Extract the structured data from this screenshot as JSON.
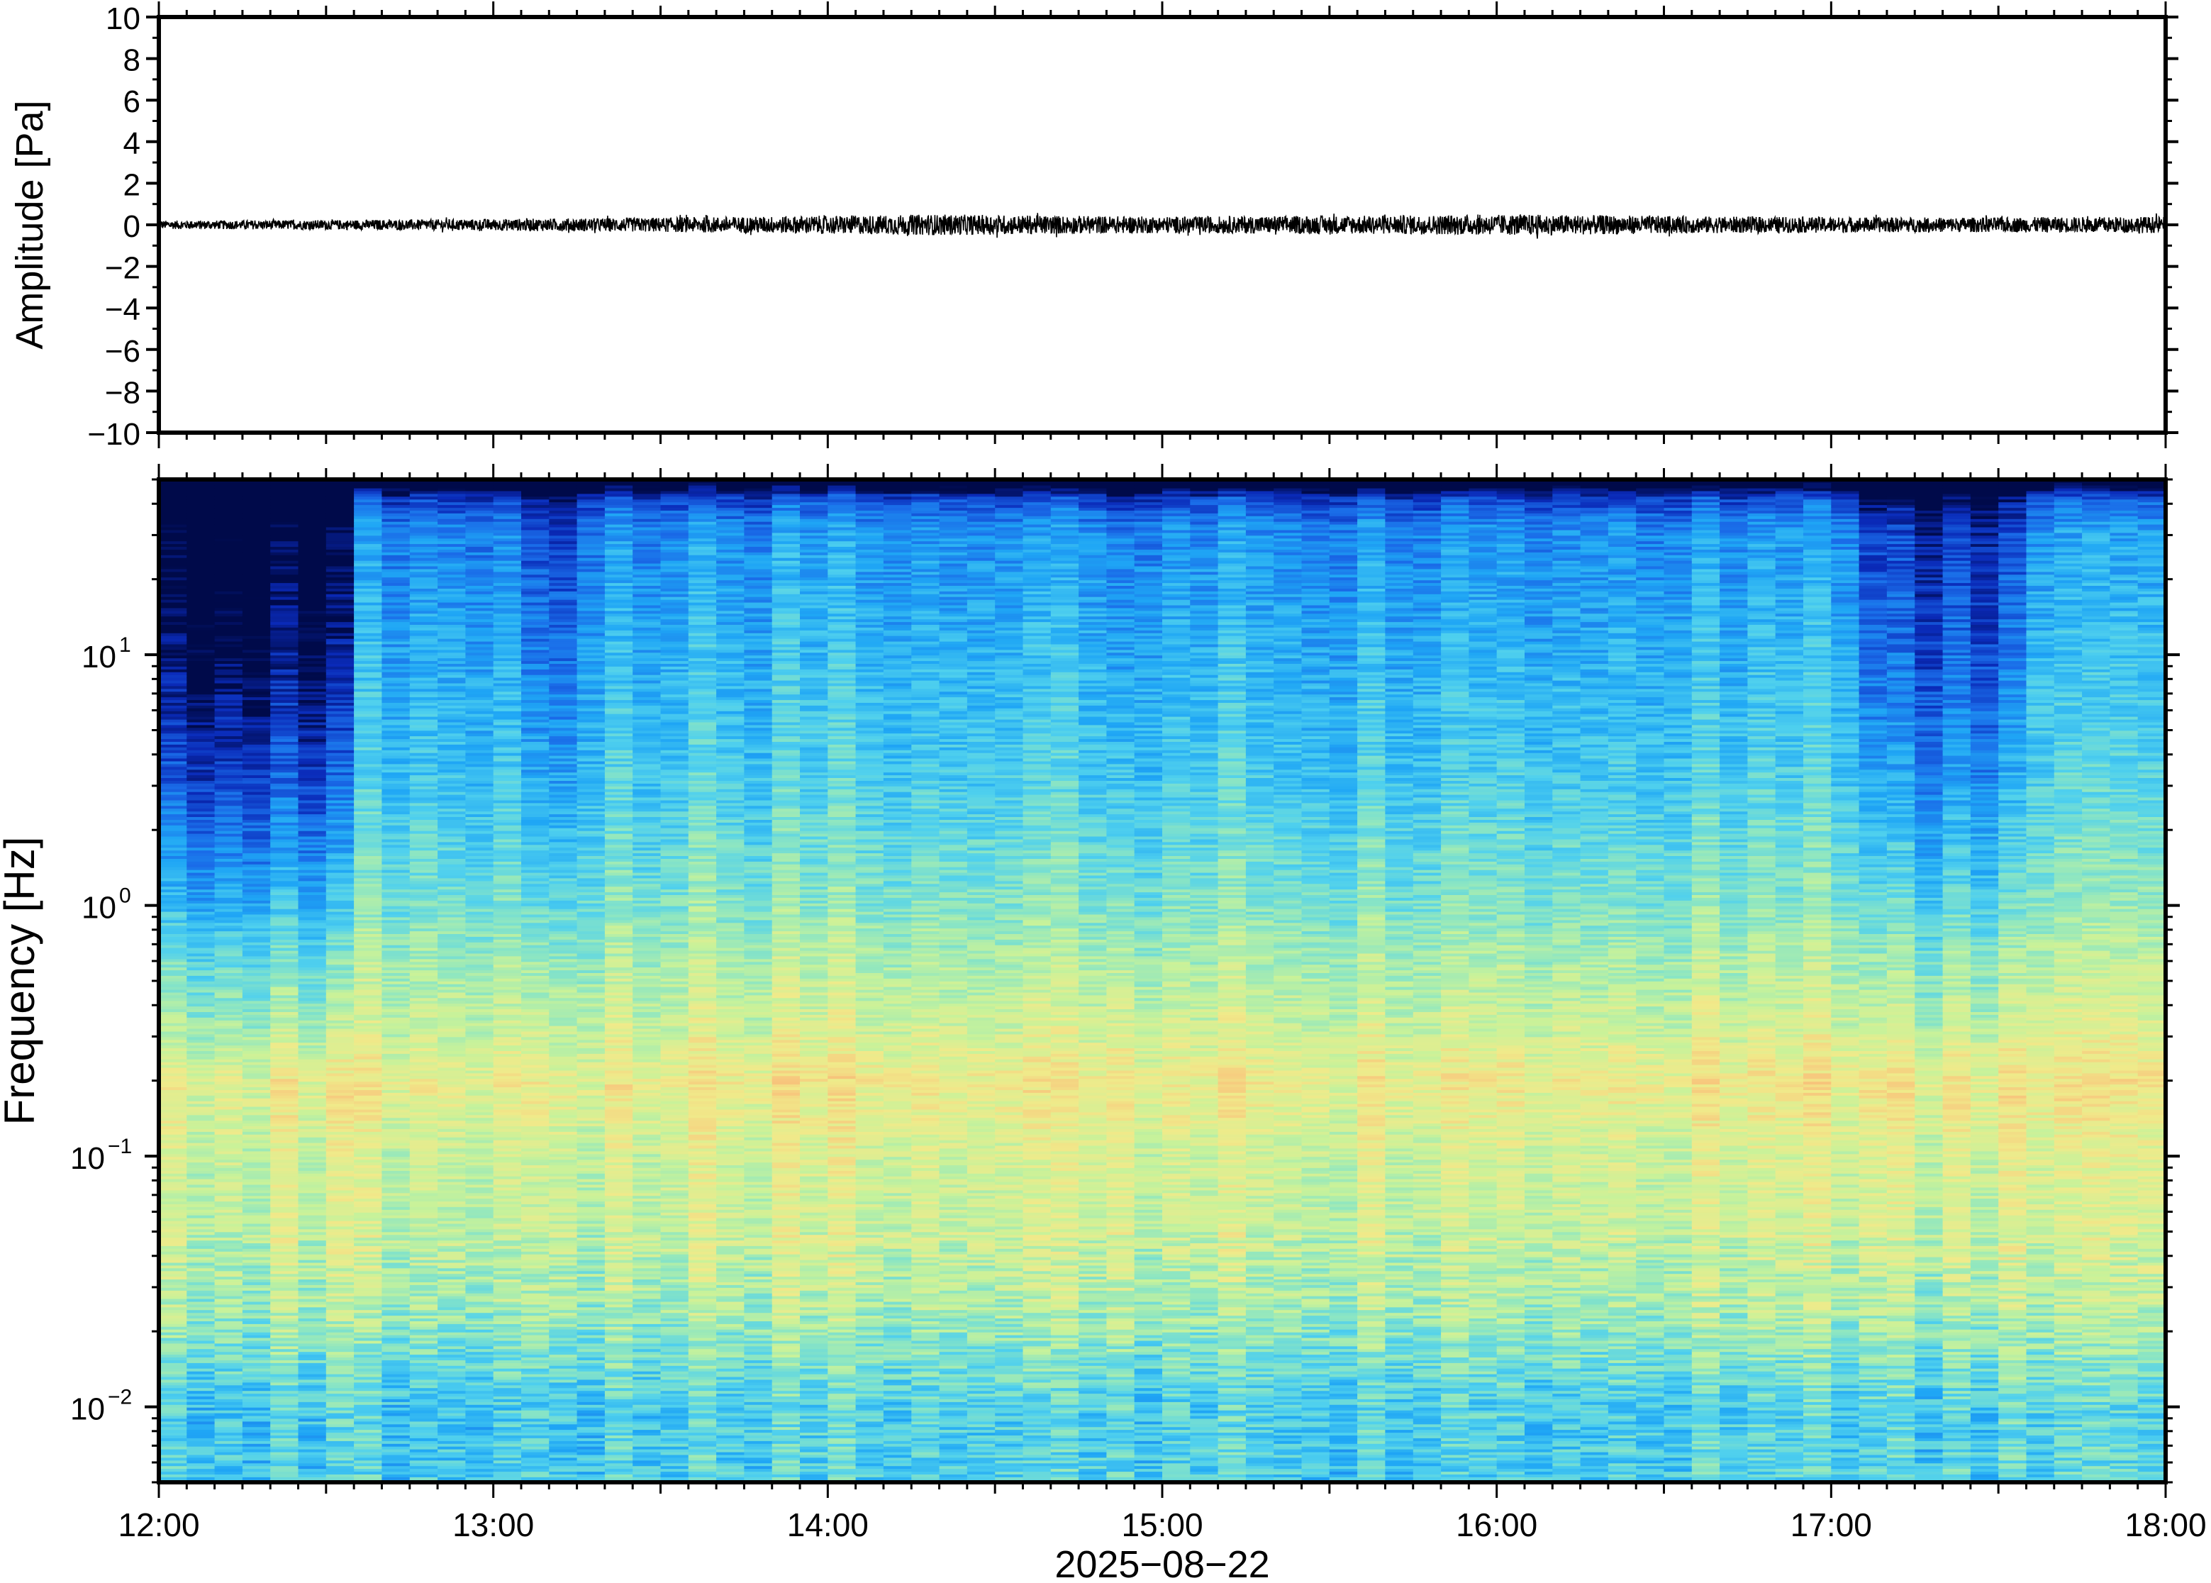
{
  "chart_data": [
    {
      "type": "line",
      "panel": "waveform",
      "ylabel": "Amplitude [Pa]",
      "ylim": [
        -10,
        10
      ],
      "yticks": [
        10,
        8,
        6,
        4,
        2,
        0,
        -2,
        -4,
        -6,
        -8,
        -10
      ],
      "ytick_labels": [
        "10",
        "8",
        "6",
        "4",
        "2",
        "0",
        "−2",
        "−4",
        "−6",
        "−8",
        "−10"
      ],
      "xlim": [
        "12:00",
        "18:00"
      ],
      "grid": false,
      "series": [
        {
          "color": "#000000",
          "description_values": "noise trace centered on 0 Pa",
          "envelope_x": [
            "12:00",
            "12:45",
            "13:30",
            "14:20",
            "15:00",
            "15:40",
            "16:05",
            "16:40",
            "17:20",
            "18:00"
          ],
          "envelope_amplitude": [
            0.2,
            0.25,
            0.35,
            0.5,
            0.4,
            0.45,
            0.5,
            0.4,
            0.35,
            0.4
          ]
        }
      ]
    },
    {
      "type": "heatmap",
      "panel": "spectrogram",
      "ylabel": "Frequency [Hz]",
      "xlabel": "2025−08−22",
      "yscale": "log",
      "ylim": [
        0.005,
        50
      ],
      "yticks": [
        0.01,
        0.1,
        1,
        10
      ],
      "ytick_labels": [
        {
          "base": "10",
          "exp": "−2"
        },
        {
          "base": "10",
          "exp": "−1"
        },
        {
          "base": "10",
          "exp": "0"
        },
        {
          "base": "10",
          "exp": "1"
        }
      ],
      "xlim": [
        "12:00",
        "18:00"
      ],
      "xtick_labels": [
        "12:00",
        "13:00",
        "14:00",
        "15:00",
        "16:00",
        "17:00",
        "18:00"
      ],
      "colormap": [
        "#000a4a",
        "#0a2ab8",
        "#1a6be8",
        "#1fa6f5",
        "#4fd0ee",
        "#8de6c2",
        "#c8f29a",
        "#f0ea8a",
        "#f7c77d",
        "#f2a86a"
      ],
      "time_bins": 72,
      "level_profile_by_frequency": {
        "log10_freq": [
          -2.3,
          -2.0,
          -1.6,
          -1.3,
          -1.0,
          -0.7,
          -0.5,
          -0.2,
          0.0,
          0.5,
          1.0,
          1.5,
          1.7
        ],
        "level": [
          0.45,
          0.45,
          0.62,
          0.68,
          0.7,
          0.78,
          0.7,
          0.62,
          0.55,
          0.44,
          0.38,
          0.3,
          0.1
        ]
      },
      "quiet_intervals": [
        {
          "start": "12:00",
          "end": "12:33",
          "depth": 0.35
        },
        {
          "start": "13:05",
          "end": "13:15",
          "depth": 0.12
        },
        {
          "start": "14:52",
          "end": "14:56",
          "depth": 0.08
        },
        {
          "start": "17:07",
          "end": "17:35",
          "depth": 0.18
        }
      ]
    }
  ]
}
